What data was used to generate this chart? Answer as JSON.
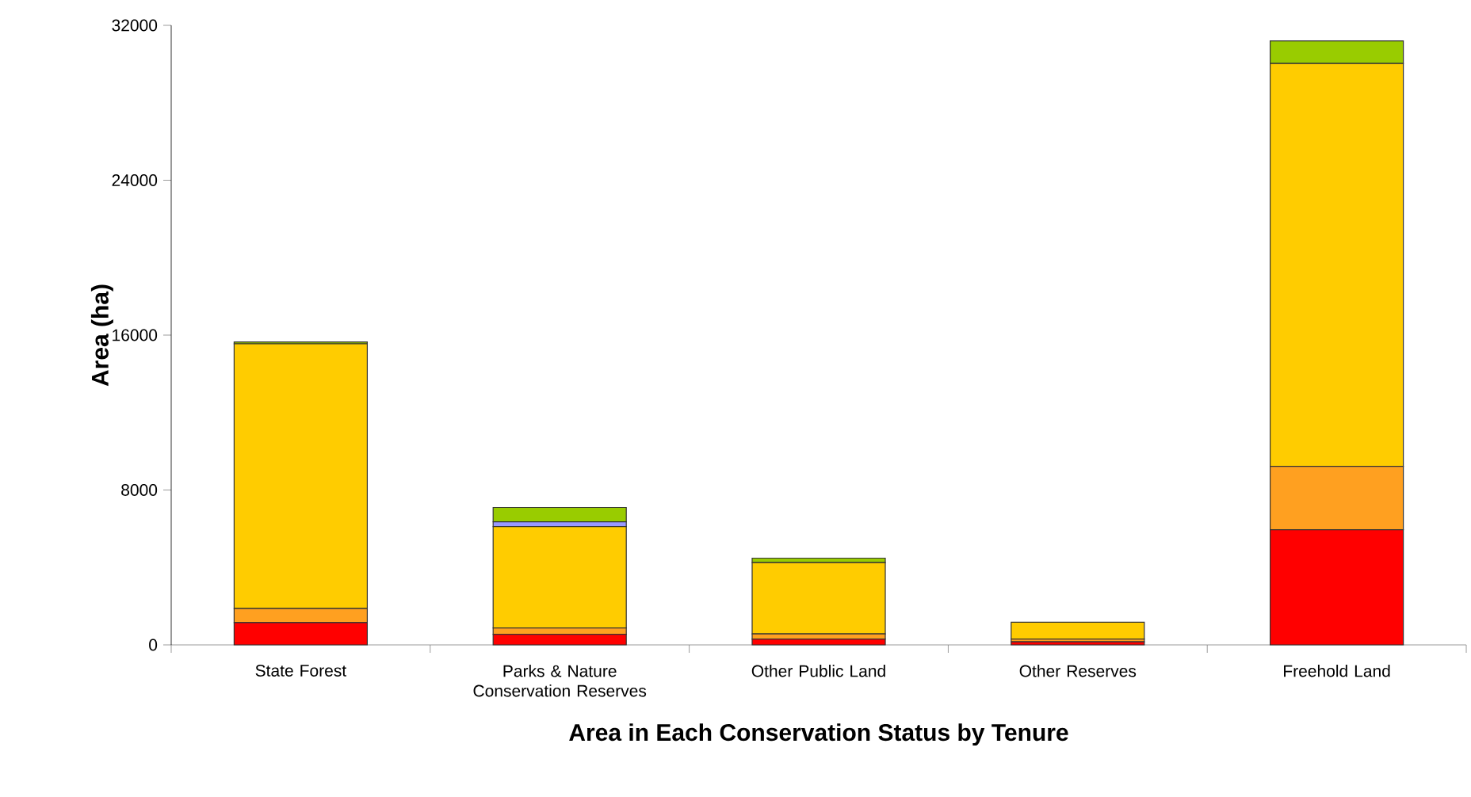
{
  "chart_data": {
    "type": "bar",
    "stacked": true,
    "xlabel": "Area in Each Conservation Status by Tenure",
    "ylabel": "Area (ha)",
    "categories": [
      "State Forest",
      "Parks & Nature Conservation Reserves",
      "Other Public Land",
      "Other Reserves",
      "Freehold Land"
    ],
    "series": [
      {
        "color": "#ff0000",
        "values": [
          1150,
          550,
          300,
          160,
          5950
        ]
      },
      {
        "color": "#ffa020",
        "values": [
          730,
          325,
          270,
          140,
          3270
        ]
      },
      {
        "color": "#ffcc00",
        "values": [
          13670,
          5235,
          3680,
          870,
          20810
        ]
      },
      {
        "color": "#9999ff",
        "values": [
          0,
          250,
          0,
          0,
          0
        ]
      },
      {
        "color": "#99cc00",
        "values": [
          100,
          740,
          230,
          0,
          1170
        ]
      }
    ],
    "ylim": [
      0,
      32000
    ],
    "yticks": [
      0,
      8000,
      16000,
      24000,
      32000
    ]
  }
}
